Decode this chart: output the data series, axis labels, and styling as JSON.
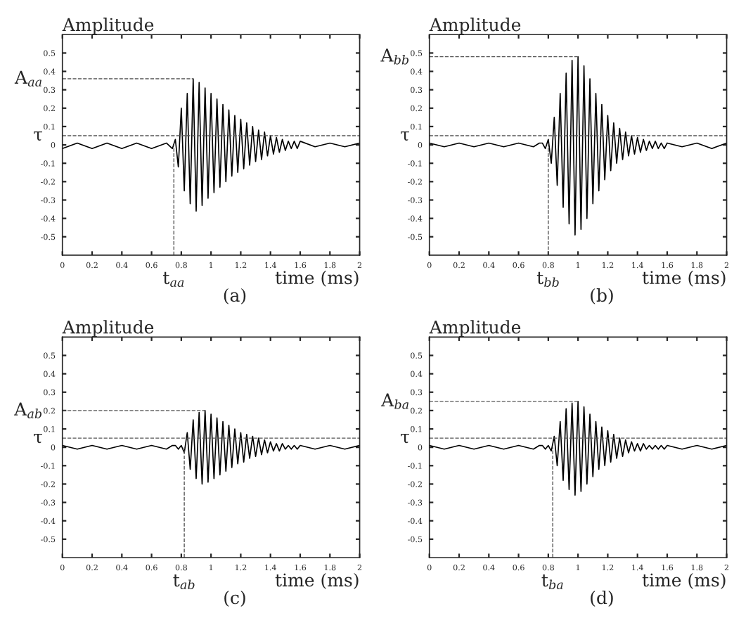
{
  "chart_data": [
    {
      "type": "line",
      "ylabel": "Amplitude",
      "xlabel": "time (ms)",
      "annotations": [
        "(a)"
      ],
      "xlim": [
        0,
        2
      ],
      "ylim": [
        -0.6,
        0.6
      ],
      "xticks": [
        0,
        0.2,
        0.4,
        0.6,
        0.8,
        1,
        1.2,
        1.4,
        1.6,
        1.8,
        2
      ],
      "yticks": [
        -0.5,
        -0.4,
        -0.3,
        -0.2,
        -0.1,
        0,
        0.1,
        0.2,
        0.3,
        0.4,
        0.5
      ],
      "grid": false,
      "legend": false,
      "ref_lines": [
        {
          "axis": "y",
          "value": 0.36,
          "label": "A$_{aa}$",
          "line_style": "dashed"
        },
        {
          "axis": "y",
          "value": 0.05,
          "label": "τ",
          "line_style": "dashed"
        },
        {
          "axis": "x",
          "value": 0.75,
          "label": "t$_{aa}$",
          "line_style": "dashed"
        }
      ],
      "series": [
        {
          "color": "#000000",
          "x": [
            0,
            0.1,
            0.2,
            0.3,
            0.4,
            0.5,
            0.6,
            0.7,
            0.74,
            0.76,
            0.78,
            0.8,
            0.82,
            0.84,
            0.86,
            0.88,
            0.9,
            0.92,
            0.94,
            0.96,
            0.98,
            1.0,
            1.02,
            1.04,
            1.06,
            1.08,
            1.1,
            1.12,
            1.14,
            1.16,
            1.18,
            1.2,
            1.22,
            1.24,
            1.26,
            1.28,
            1.3,
            1.32,
            1.34,
            1.36,
            1.38,
            1.4,
            1.42,
            1.44,
            1.46,
            1.48,
            1.5,
            1.52,
            1.54,
            1.56,
            1.58,
            1.6,
            1.7,
            1.8,
            1.9,
            2.0
          ],
          "values": [
            -0.02,
            0.01,
            -0.02,
            0.01,
            -0.02,
            0.01,
            -0.02,
            0.01,
            -0.02,
            0.03,
            -0.12,
            0.2,
            -0.25,
            0.28,
            -0.32,
            0.36,
            -0.36,
            0.34,
            -0.33,
            0.31,
            -0.29,
            0.28,
            -0.26,
            0.25,
            -0.23,
            0.22,
            -0.2,
            0.19,
            -0.17,
            0.16,
            -0.15,
            0.14,
            -0.13,
            0.12,
            -0.11,
            0.1,
            -0.09,
            0.08,
            -0.08,
            0.07,
            -0.06,
            0.05,
            -0.05,
            0.04,
            -0.04,
            0.03,
            -0.03,
            0.02,
            -0.02,
            0.02,
            -0.02,
            0.02,
            -0.01,
            0.01,
            -0.01,
            0.01
          ]
        }
      ]
    },
    {
      "type": "line",
      "ylabel": "Amplitude",
      "xlabel": "time (ms)",
      "annotations": [
        "(b)"
      ],
      "xlim": [
        0,
        2
      ],
      "ylim": [
        -0.6,
        0.6
      ],
      "xticks": [
        0,
        0.2,
        0.4,
        0.6,
        0.8,
        1,
        1.2,
        1.4,
        1.6,
        1.8,
        2
      ],
      "yticks": [
        -0.5,
        -0.4,
        -0.3,
        -0.2,
        -0.1,
        0,
        0.1,
        0.2,
        0.3,
        0.4,
        0.5
      ],
      "grid": false,
      "legend": false,
      "ref_lines": [
        {
          "axis": "y",
          "value": 0.48,
          "label": "A$_{bb}$",
          "line_style": "dashed"
        },
        {
          "axis": "y",
          "value": 0.05,
          "label": "τ",
          "line_style": "dashed"
        },
        {
          "axis": "x",
          "value": 0.8,
          "label": "t$_{bb}$",
          "line_style": "dashed"
        }
      ],
      "series": [
        {
          "color": "#000000",
          "x": [
            0,
            0.1,
            0.2,
            0.3,
            0.4,
            0.5,
            0.6,
            0.7,
            0.74,
            0.76,
            0.78,
            0.8,
            0.82,
            0.84,
            0.86,
            0.88,
            0.9,
            0.92,
            0.94,
            0.96,
            0.98,
            1.0,
            1.02,
            1.04,
            1.06,
            1.08,
            1.1,
            1.12,
            1.14,
            1.16,
            1.18,
            1.2,
            1.22,
            1.24,
            1.26,
            1.28,
            1.3,
            1.32,
            1.34,
            1.36,
            1.38,
            1.4,
            1.42,
            1.44,
            1.46,
            1.48,
            1.5,
            1.52,
            1.54,
            1.56,
            1.58,
            1.6,
            1.7,
            1.8,
            1.9,
            2.0
          ],
          "values": [
            0.01,
            -0.01,
            0.01,
            -0.01,
            0.01,
            -0.01,
            0.01,
            -0.01,
            0.01,
            0.01,
            -0.02,
            0.03,
            -0.1,
            0.15,
            -0.22,
            0.28,
            -0.34,
            0.39,
            -0.43,
            0.46,
            -0.49,
            0.48,
            -0.46,
            0.43,
            -0.4,
            0.36,
            -0.32,
            0.28,
            -0.25,
            0.22,
            -0.19,
            0.16,
            -0.14,
            0.12,
            -0.1,
            0.09,
            -0.08,
            0.07,
            -0.06,
            0.05,
            -0.05,
            0.04,
            -0.04,
            0.03,
            -0.03,
            0.02,
            -0.02,
            0.02,
            -0.02,
            0.01,
            -0.02,
            0.01,
            -0.01,
            0.01,
            -0.02,
            0.01
          ]
        }
      ]
    },
    {
      "type": "line",
      "ylabel": "Amplitude",
      "xlabel": "time (ms)",
      "annotations": [
        "(c)"
      ],
      "xlim": [
        0,
        2
      ],
      "ylim": [
        -0.6,
        0.6
      ],
      "xticks": [
        0,
        0.2,
        0.4,
        0.6,
        0.8,
        1,
        1.2,
        1.4,
        1.6,
        1.8,
        2
      ],
      "yticks": [
        -0.5,
        -0.4,
        -0.3,
        -0.2,
        -0.1,
        0,
        0.1,
        0.2,
        0.3,
        0.4,
        0.5
      ],
      "grid": false,
      "legend": false,
      "ref_lines": [
        {
          "axis": "y",
          "value": 0.2,
          "label": "A$_{ab}$",
          "line_style": "dashed"
        },
        {
          "axis": "y",
          "value": 0.05,
          "label": "τ",
          "line_style": "dashed"
        },
        {
          "axis": "x",
          "value": 0.82,
          "label": "t$_{ab}$",
          "line_style": "dashed"
        }
      ],
      "series": [
        {
          "color": "#000000",
          "x": [
            0,
            0.1,
            0.2,
            0.3,
            0.4,
            0.5,
            0.6,
            0.7,
            0.74,
            0.76,
            0.78,
            0.8,
            0.82,
            0.84,
            0.86,
            0.88,
            0.9,
            0.92,
            0.94,
            0.96,
            0.98,
            1.0,
            1.02,
            1.04,
            1.06,
            1.08,
            1.1,
            1.12,
            1.14,
            1.16,
            1.18,
            1.2,
            1.22,
            1.24,
            1.26,
            1.28,
            1.3,
            1.32,
            1.34,
            1.36,
            1.38,
            1.4,
            1.42,
            1.44,
            1.46,
            1.48,
            1.5,
            1.52,
            1.54,
            1.56,
            1.58,
            1.6,
            1.7,
            1.8,
            1.9,
            2.0
          ],
          "values": [
            0.01,
            -0.01,
            0.01,
            -0.01,
            0.01,
            -0.01,
            0.01,
            -0.01,
            0.01,
            0.01,
            -0.01,
            0.01,
            -0.03,
            0.08,
            -0.12,
            0.15,
            -0.17,
            0.19,
            -0.2,
            0.2,
            -0.19,
            0.18,
            -0.17,
            0.16,
            -0.15,
            0.14,
            -0.13,
            0.12,
            -0.11,
            0.1,
            -0.09,
            0.08,
            -0.08,
            0.07,
            -0.06,
            0.06,
            -0.05,
            0.05,
            -0.04,
            0.04,
            -0.03,
            0.03,
            -0.02,
            0.02,
            -0.02,
            0.02,
            -0.01,
            0.01,
            -0.01,
            0.01,
            -0.01,
            0.01,
            -0.01,
            0.01,
            -0.01,
            0.01
          ]
        }
      ]
    },
    {
      "type": "line",
      "ylabel": "Amplitude",
      "xlabel": "time (ms)",
      "annotations": [
        "(d)"
      ],
      "xlim": [
        0,
        2
      ],
      "ylim": [
        -0.6,
        0.6
      ],
      "xticks": [
        0,
        0.2,
        0.4,
        0.6,
        0.8,
        1,
        1.2,
        1.4,
        1.6,
        1.8,
        2
      ],
      "yticks": [
        -0.5,
        -0.4,
        -0.3,
        -0.2,
        -0.1,
        0,
        0.1,
        0.2,
        0.3,
        0.4,
        0.5
      ],
      "grid": false,
      "legend": false,
      "ref_lines": [
        {
          "axis": "y",
          "value": 0.25,
          "label": "A$_{ba}$",
          "line_style": "dashed"
        },
        {
          "axis": "y",
          "value": 0.05,
          "label": "τ",
          "line_style": "dashed"
        },
        {
          "axis": "x",
          "value": 0.83,
          "label": "t$_{ba}$",
          "line_style": "dashed"
        }
      ],
      "series": [
        {
          "color": "#000000",
          "x": [
            0,
            0.1,
            0.2,
            0.3,
            0.4,
            0.5,
            0.6,
            0.7,
            0.74,
            0.76,
            0.78,
            0.8,
            0.82,
            0.84,
            0.86,
            0.88,
            0.9,
            0.92,
            0.94,
            0.96,
            0.98,
            1.0,
            1.02,
            1.04,
            1.06,
            1.08,
            1.1,
            1.12,
            1.14,
            1.16,
            1.18,
            1.2,
            1.22,
            1.24,
            1.26,
            1.28,
            1.3,
            1.32,
            1.34,
            1.36,
            1.38,
            1.4,
            1.42,
            1.44,
            1.46,
            1.48,
            1.5,
            1.52,
            1.54,
            1.56,
            1.58,
            1.6,
            1.7,
            1.8,
            1.9,
            2.0
          ],
          "values": [
            0.01,
            -0.01,
            0.01,
            -0.01,
            0.01,
            -0.01,
            0.01,
            -0.01,
            0.01,
            0.01,
            -0.01,
            0.01,
            -0.02,
            0.06,
            -0.1,
            0.14,
            -0.18,
            0.21,
            -0.23,
            0.24,
            -0.26,
            0.25,
            -0.24,
            0.22,
            -0.2,
            0.18,
            -0.16,
            0.14,
            -0.12,
            0.11,
            -0.1,
            0.09,
            -0.08,
            0.07,
            -0.06,
            0.05,
            -0.05,
            0.04,
            -0.03,
            0.03,
            -0.02,
            0.02,
            -0.02,
            0.02,
            -0.01,
            0.01,
            -0.01,
            0.01,
            -0.01,
            0.01,
            -0.01,
            0.01,
            -0.01,
            0.01,
            -0.01,
            0.01
          ]
        }
      ]
    }
  ]
}
